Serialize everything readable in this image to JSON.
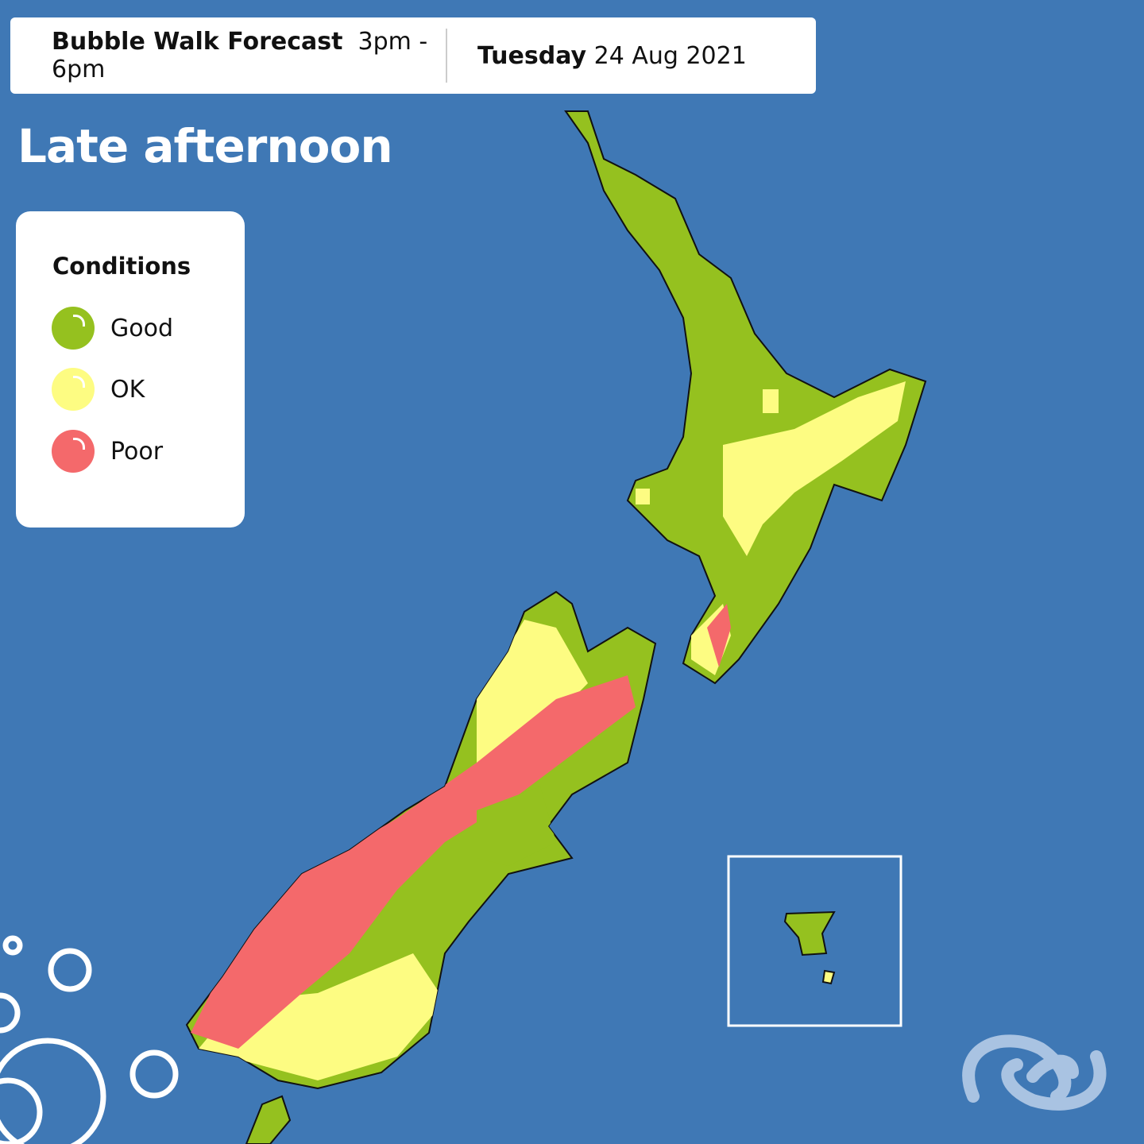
{
  "header": {
    "product": "Bubble Walk Forecast",
    "time_range": "3pm - 6pm",
    "weekday": "Tuesday",
    "date": "24 Aug 2021"
  },
  "period_title": "Late afternoon",
  "legend": {
    "title": "Conditions",
    "items": [
      {
        "label": "Good",
        "color": "#95c11f"
      },
      {
        "label": "OK",
        "color": "#fdfc82"
      },
      {
        "label": "Poor",
        "color": "#f4696b"
      }
    ]
  },
  "colors": {
    "sea": "#3f78b5",
    "good": "#95c11f",
    "ok": "#fdfc82",
    "poor": "#f4696b"
  },
  "icons": [
    "bubbles-decoration-icon",
    "koru-logo-icon"
  ]
}
